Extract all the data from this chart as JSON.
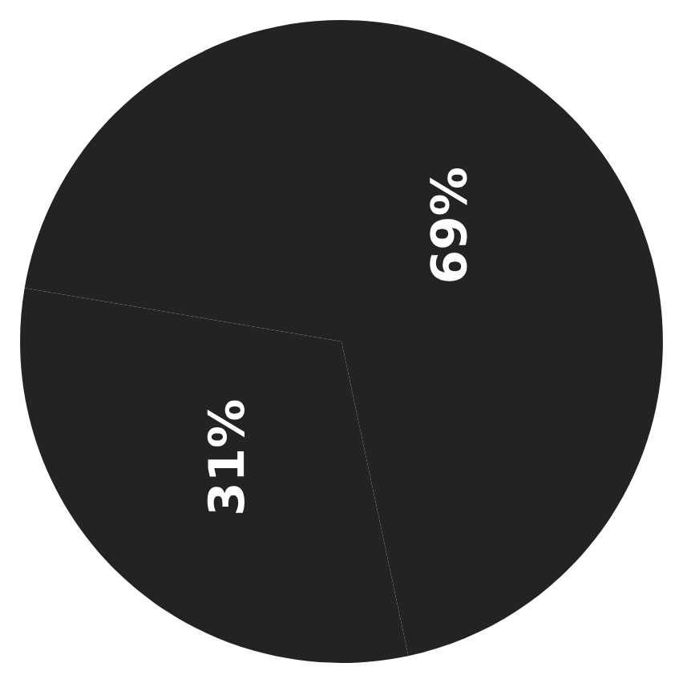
{
  "chart_data": {
    "type": "pie",
    "categories": [
      null,
      null
    ],
    "values": [
      69,
      31
    ],
    "colors": [
      "#232323",
      "#232323"
    ],
    "value_labels": [
      "69%",
      "31%"
    ]
  }
}
